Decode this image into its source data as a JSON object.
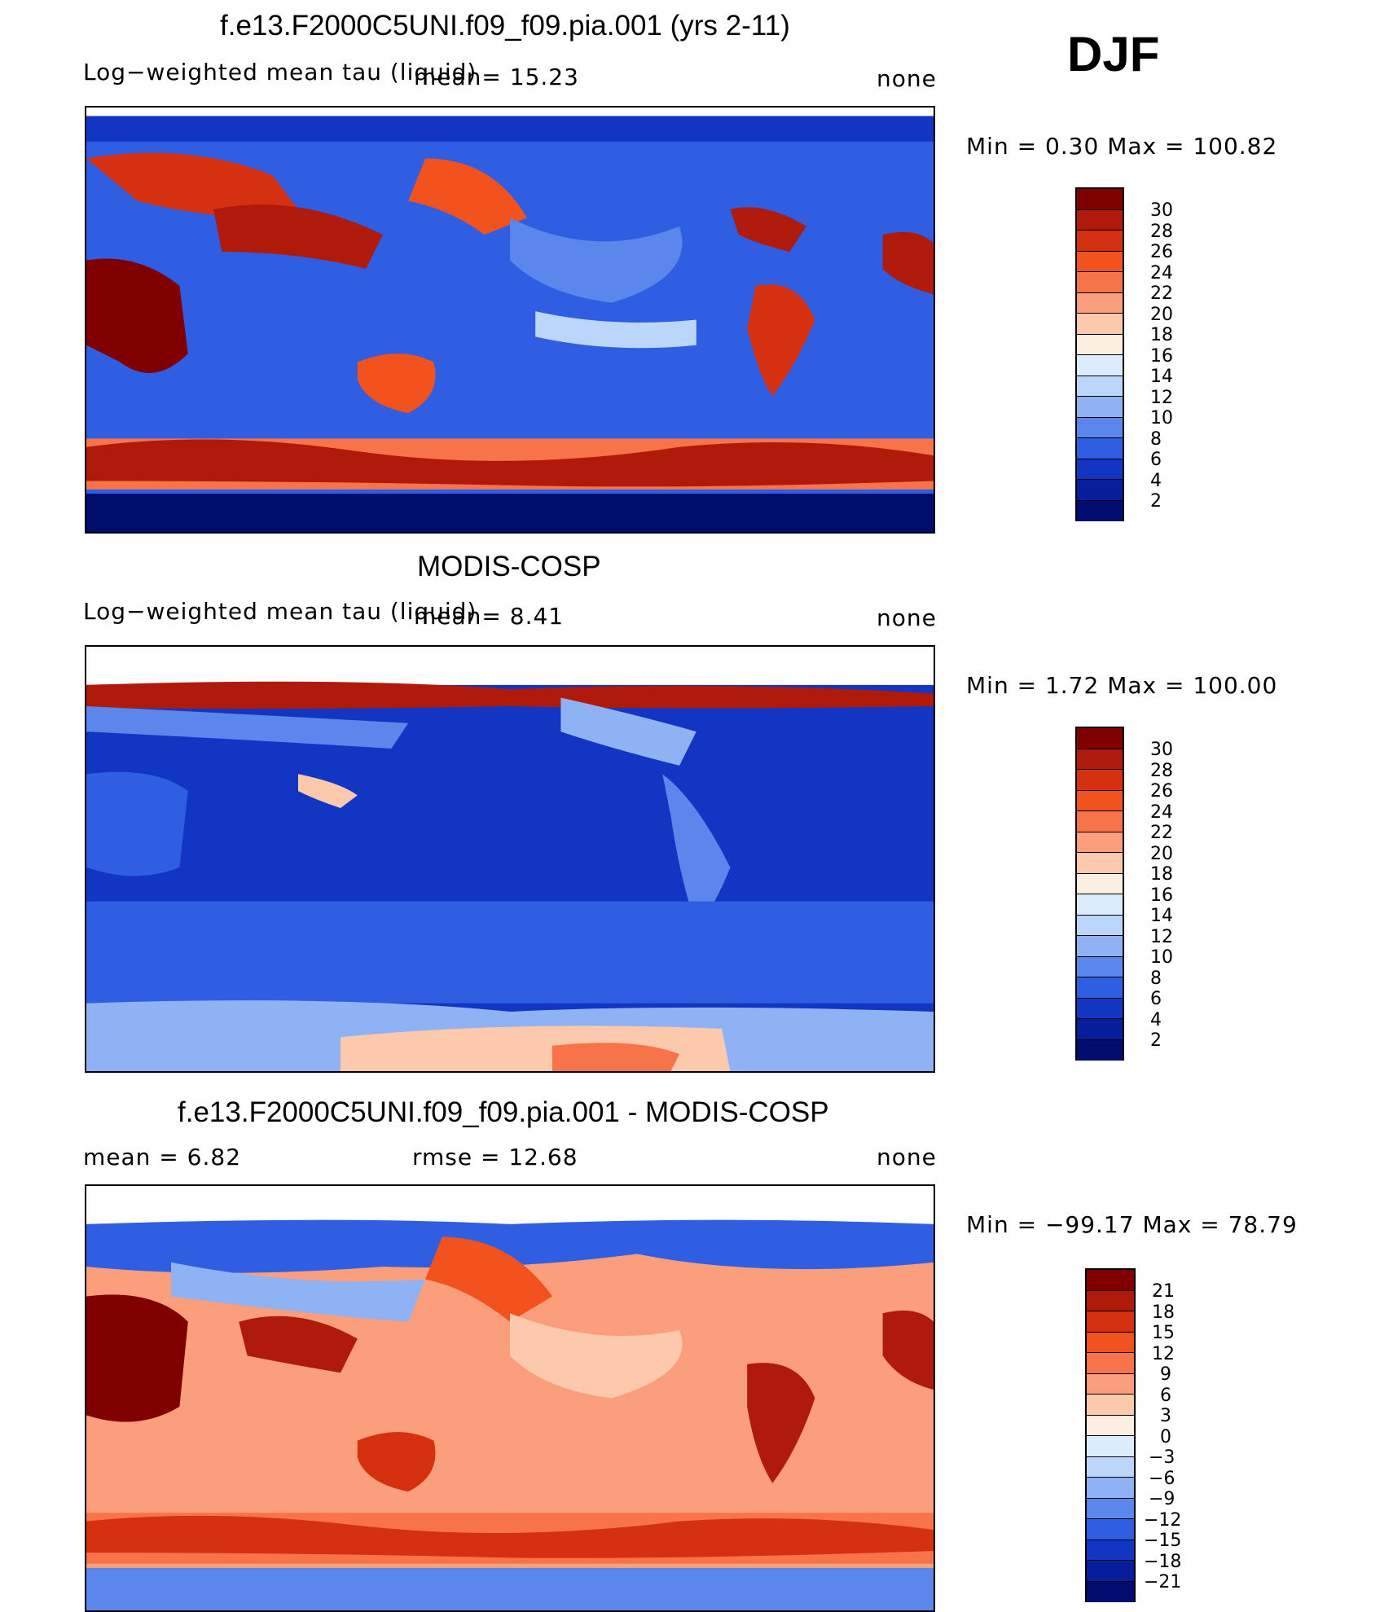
{
  "season": "DJF",
  "panels": [
    {
      "title": "f.e13.F2000C5UNI.f09_f09.pia.001 (yrs 2-11)",
      "variable": "Log−weighted mean tau (liquid)",
      "stat1": "mean=   15.23",
      "stat2": "",
      "units": "none",
      "minmax": "Min  =    0.30  Max  =  100.82",
      "ticks": [
        "30",
        "28",
        "26",
        "24",
        "22",
        "20",
        "18",
        "16",
        "14",
        "12",
        "10",
        "8",
        "6",
        "4",
        "2"
      ],
      "colors": [
        "#800000",
        "#b01a0a",
        "#d5300f",
        "#f2531e",
        "#f7744a",
        "#fb9e7c",
        "#fdc9ad",
        "#fdeee2",
        "#dbecfc",
        "#bcd6fb",
        "#8fb2f5",
        "#5b86ec",
        "#2f5ee3",
        "#1235c4",
        "#061e9b",
        "#000d6e"
      ]
    },
    {
      "title": "MODIS-COSP",
      "variable": "Log−weighted mean tau (liquid)",
      "stat1": "mean=    8.41",
      "stat2": "",
      "units": "none",
      "minmax": "Min  =    1.72  Max  =  100.00",
      "ticks": [
        "30",
        "28",
        "26",
        "24",
        "22",
        "20",
        "18",
        "16",
        "14",
        "12",
        "10",
        "8",
        "6",
        "4",
        "2"
      ],
      "colors": [
        "#800000",
        "#b01a0a",
        "#d5300f",
        "#f2531e",
        "#f7744a",
        "#fb9e7c",
        "#fdc9ad",
        "#fdeee2",
        "#dbecfc",
        "#bcd6fb",
        "#8fb2f5",
        "#5b86ec",
        "#2f5ee3",
        "#1235c4",
        "#061e9b",
        "#000d6e"
      ]
    },
    {
      "title": "f.e13.F2000C5UNI.f09_f09.pia.001 - MODIS-COSP",
      "variable": "",
      "stat1": "mean  =      6.82",
      "stat2": "rmse  =     12.68",
      "units": "none",
      "minmax": "Min  = −99.17  Max  =    78.79",
      "ticks": [
        "21",
        "18",
        "15",
        "12",
        "9",
        "6",
        "3",
        "0",
        "−3",
        "−6",
        "−9",
        "−12",
        "−15",
        "−18",
        "−21"
      ],
      "colors": [
        "#800000",
        "#b01a0a",
        "#d5300f",
        "#f2531e",
        "#f7744a",
        "#fb9e7c",
        "#fdc9ad",
        "#fdeee2",
        "#dbecfc",
        "#bcd6fb",
        "#8fb2f5",
        "#5b86ec",
        "#2f5ee3",
        "#1235c4",
        "#061e9b",
        "#000d6e"
      ]
    }
  ]
}
